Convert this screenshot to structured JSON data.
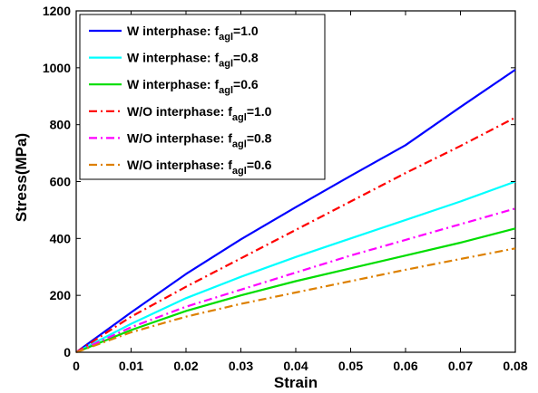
{
  "chart_data": {
    "type": "line",
    "xlabel": "Strain",
    "ylabel": "Stress(MPa)",
    "xlim": [
      0,
      0.08
    ],
    "ylim": [
      0,
      1200
    ],
    "xticks": [
      "0",
      "0.01",
      "0.02",
      "0.03",
      "0.04",
      "0.05",
      "0.06",
      "0.07",
      "0.08"
    ],
    "yticks": [
      "0",
      "200",
      "400",
      "600",
      "800",
      "1000",
      "1200"
    ],
    "grid": false,
    "legend_position": "top-left",
    "series": [
      {
        "name": "W interphase: f",
        "sub": "agl",
        "suffix": "=1.0",
        "color": "#0000ff",
        "dash": "solid",
        "x": [
          0,
          0.01,
          0.02,
          0.03,
          0.04,
          0.05,
          0.06,
          0.07,
          0.08
        ],
        "y": [
          0,
          140,
          275,
          397,
          510,
          620,
          728,
          862,
          993
        ]
      },
      {
        "name": "W interphase: f",
        "sub": "agl",
        "suffix": "=0.8",
        "color": "#00ffff",
        "dash": "solid",
        "x": [
          0,
          0.01,
          0.02,
          0.03,
          0.04,
          0.05,
          0.06,
          0.07,
          0.08
        ],
        "y": [
          0,
          100,
          190,
          265,
          335,
          400,
          465,
          530,
          600
        ]
      },
      {
        "name": "W interphase: f",
        "sub": "agl",
        "suffix": "=0.6",
        "color": "#00dd00",
        "dash": "solid",
        "x": [
          0,
          0.01,
          0.02,
          0.03,
          0.04,
          0.05,
          0.06,
          0.07,
          0.08
        ],
        "y": [
          0,
          78,
          145,
          200,
          250,
          295,
          340,
          385,
          435
        ]
      },
      {
        "name": "W/O interphase: f",
        "sub": "agl",
        "suffix": "=1.0",
        "color": "#ff0000",
        "dash": "dashdot",
        "x": [
          0,
          0.01,
          0.02,
          0.03,
          0.04,
          0.05,
          0.06,
          0.07,
          0.08
        ],
        "y": [
          0,
          125,
          230,
          330,
          430,
          530,
          630,
          725,
          825
        ]
      },
      {
        "name": "W/O interphase: f",
        "sub": "agl",
        "suffix": "=0.8",
        "color": "#ff00ff",
        "dash": "dashdot",
        "x": [
          0,
          0.01,
          0.02,
          0.03,
          0.04,
          0.05,
          0.06,
          0.07,
          0.08
        ],
        "y": [
          0,
          88,
          160,
          220,
          280,
          340,
          395,
          450,
          505
        ]
      },
      {
        "name": "W/O interphase: f",
        "sub": "agl",
        "suffix": "=0.6",
        "color": "#dd8000",
        "dash": "dashdot",
        "x": [
          0,
          0.01,
          0.02,
          0.03,
          0.04,
          0.05,
          0.06,
          0.07,
          0.08
        ],
        "y": [
          0,
          70,
          125,
          170,
          210,
          250,
          290,
          328,
          365
        ]
      }
    ]
  }
}
